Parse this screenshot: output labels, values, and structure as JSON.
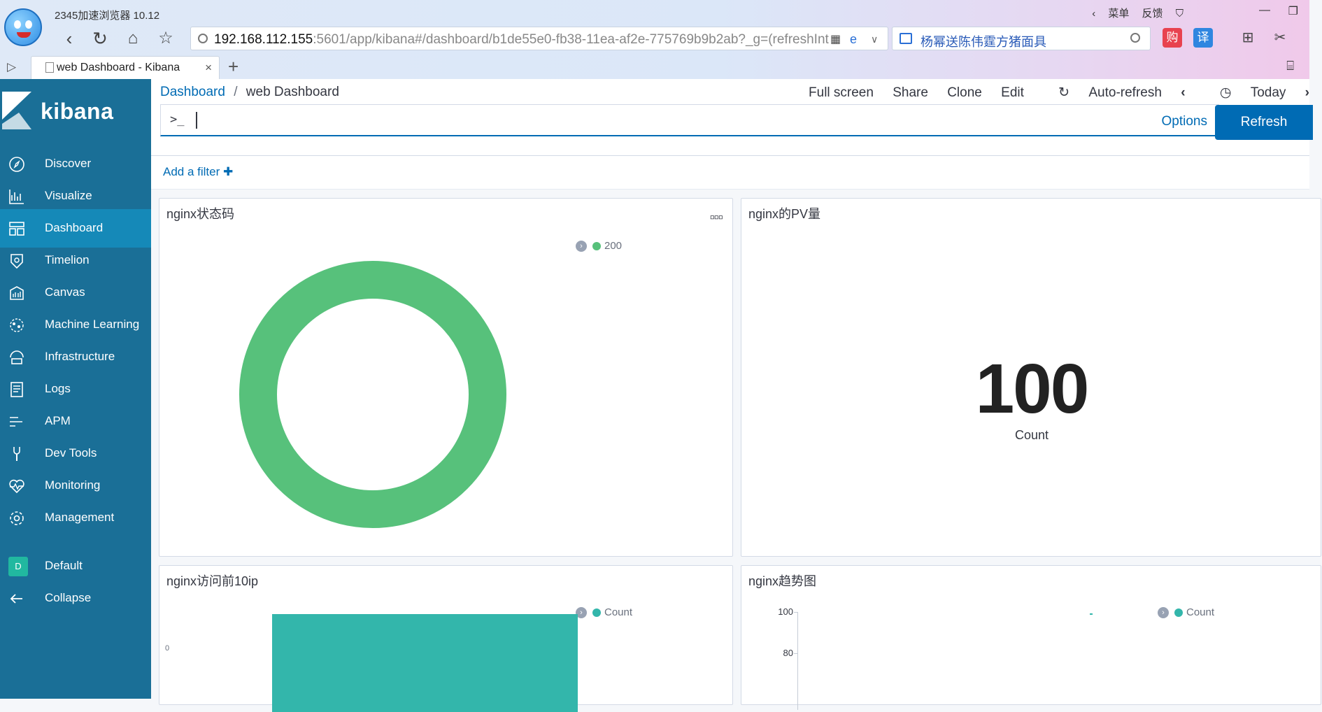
{
  "browser": {
    "app_title": "2345加速浏览器 10.12",
    "url_host": "192.168.112.155",
    "url_rest": ":5601/app/kibana#/dashboard/b1de55e0-fb38-11ea-af2e-775769b9b2ab?_g=(refreshInt",
    "search_text": "杨幂送陈伟霆方猪面具",
    "menu_label": "菜单",
    "feedback_label": "反馈",
    "tab_title": "web Dashboard - Kibana",
    "gou_label": "购",
    "yi_label": "译"
  },
  "sidebar": {
    "brand": "kibana",
    "items": [
      {
        "label": "Discover",
        "icon": "compass-icon"
      },
      {
        "label": "Visualize",
        "icon": "visualize-icon"
      },
      {
        "label": "Dashboard",
        "icon": "dashboard-icon"
      },
      {
        "label": "Timelion",
        "icon": "timelion-icon"
      },
      {
        "label": "Canvas",
        "icon": "canvas-icon"
      },
      {
        "label": "Machine Learning",
        "icon": "machine-learning-icon"
      },
      {
        "label": "Infrastructure",
        "icon": "infrastructure-icon"
      },
      {
        "label": "Logs",
        "icon": "logs-icon"
      },
      {
        "label": "APM",
        "icon": "apm-icon"
      },
      {
        "label": "Dev Tools",
        "icon": "wrench-icon"
      },
      {
        "label": "Monitoring",
        "icon": "heartbeat-icon"
      },
      {
        "label": "Management",
        "icon": "gear-icon"
      }
    ],
    "space_badge": "D",
    "space_label": "Default",
    "collapse_label": "Collapse",
    "active_color": "#1589b8"
  },
  "header": {
    "breadcrumb_root": "Dashboard",
    "breadcrumb_sep": "/",
    "breadcrumb_current": "web Dashboard",
    "menu": {
      "full_screen": "Full screen",
      "share": "Share",
      "clone": "Clone",
      "edit": "Edit",
      "auto_refresh": "Auto-refresh",
      "time_range": "Today"
    },
    "query_prompt": ">_",
    "query_value": "",
    "options_label": "Options",
    "refresh_label": "Refresh",
    "add_filter_label": "Add a filter"
  },
  "panels": {
    "status": {
      "title": "nginx状态码",
      "legend": "200",
      "color": "#57c17b"
    },
    "pv": {
      "title": "nginx的PV量",
      "value": "100",
      "label": "Count"
    },
    "topip": {
      "title": "nginx访问前10ip",
      "legend": "Count",
      "tick": "0",
      "color": "#33b6ab"
    },
    "trend": {
      "title": "nginx趋势图",
      "legend": "Count",
      "ticks": [
        "100",
        "80"
      ],
      "color": "#33b6ab"
    }
  }
}
